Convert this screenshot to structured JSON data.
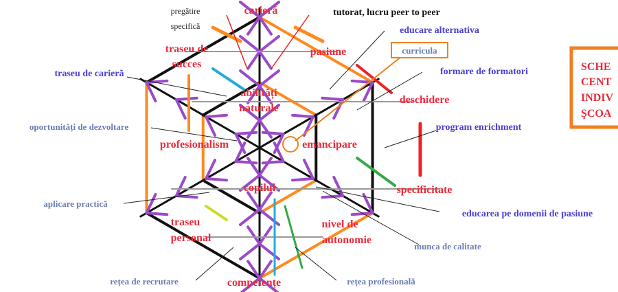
{
  "nodes": [
    {
      "lines": [
        "carieră"
      ]
    },
    {
      "lines": [
        "traseu de",
        "succes"
      ]
    },
    {
      "lines": [
        "pasiune"
      ]
    },
    {
      "lines": [
        "abilități",
        "naturale"
      ]
    },
    {
      "lines": [
        "deschidere"
      ]
    },
    {
      "lines": [
        "profesionalism"
      ]
    },
    {
      "lines": [
        "emancipare"
      ]
    },
    {
      "lines": [
        "copilul"
      ]
    },
    {
      "lines": [
        "specificitate"
      ]
    },
    {
      "lines": [
        "traseu",
        "personal"
      ]
    },
    {
      "lines": [
        "nivel de",
        "autonomie"
      ]
    },
    {
      "lines": [
        "competențe"
      ]
    }
  ],
  "top_note": {
    "lines": [
      "pregătire",
      "specifică"
    ]
  },
  "tutorat": "tutorat, lucru peer to peer",
  "annotations": [
    "educare alternativa",
    "curricula",
    "formare de formatori",
    "traseu de carieră",
    "oportunități de dezvoltare",
    "program enrichment",
    "aplicare practică",
    "educarea pe domenii de pasiune",
    "munca de calitate",
    "rețea de recrutare",
    "rețea profesională"
  ],
  "side_box": {
    "lines": [
      "SCHE",
      "CENT",
      "INDIV",
      "ŞCOA"
    ]
  }
}
